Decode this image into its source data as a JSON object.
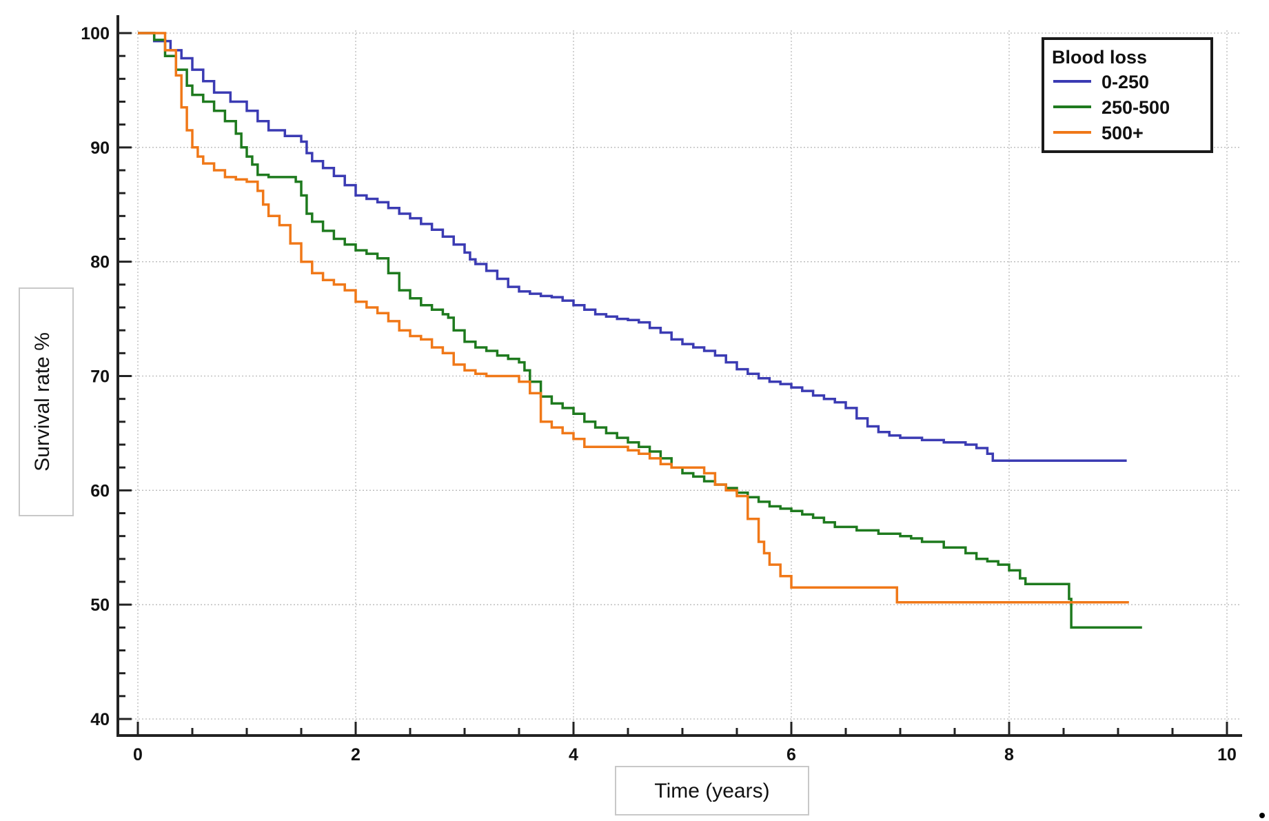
{
  "chart_data": {
    "type": "line",
    "title": "",
    "xlabel": "Time (years)",
    "ylabel": "Survival rate %",
    "xlim": [
      0,
      10
    ],
    "ylim": [
      40,
      100
    ],
    "x_ticks": [
      "0",
      "2",
      "4",
      "6",
      "8",
      "10"
    ],
    "y_ticks": [
      "40",
      "50",
      "60",
      "70",
      "80",
      "90",
      "100"
    ],
    "grid": true,
    "legend": {
      "title": "Blood loss",
      "position": "top-right"
    },
    "series": [
      {
        "name": "0-250",
        "color": "#3b3bb3",
        "x": [
          0,
          0.15,
          0.3,
          0.4,
          0.5,
          0.6,
          0.7,
          0.85,
          1.0,
          1.1,
          1.2,
          1.35,
          1.5,
          1.55,
          1.6,
          1.7,
          1.8,
          1.9,
          2.0,
          2.1,
          2.2,
          2.3,
          2.4,
          2.5,
          2.6,
          2.7,
          2.8,
          2.9,
          3.0,
          3.05,
          3.1,
          3.2,
          3.3,
          3.4,
          3.5,
          3.6,
          3.7,
          3.8,
          3.9,
          4.0,
          4.1,
          4.2,
          4.3,
          4.4,
          4.5,
          4.6,
          4.7,
          4.8,
          4.9,
          5.0,
          5.1,
          5.2,
          5.3,
          5.4,
          5.5,
          5.6,
          5.7,
          5.8,
          5.9,
          6.0,
          6.1,
          6.2,
          6.3,
          6.4,
          6.5,
          6.6,
          6.7,
          6.8,
          6.9,
          7.0,
          7.2,
          7.4,
          7.6,
          7.7,
          7.8,
          7.85,
          8.0,
          9.08
        ],
        "y": [
          100,
          99.3,
          98.5,
          97.8,
          96.8,
          95.8,
          94.8,
          94.0,
          93.2,
          92.3,
          91.5,
          91.0,
          90.5,
          89.5,
          88.8,
          88.2,
          87.5,
          86.7,
          85.8,
          85.5,
          85.2,
          84.7,
          84.2,
          83.8,
          83.3,
          82.8,
          82.2,
          81.5,
          80.8,
          80.2,
          79.8,
          79.2,
          78.5,
          77.8,
          77.4,
          77.2,
          77.0,
          76.9,
          76.6,
          76.2,
          75.8,
          75.4,
          75.2,
          75.0,
          74.9,
          74.7,
          74.2,
          73.8,
          73.2,
          72.8,
          72.5,
          72.2,
          71.8,
          71.2,
          70.6,
          70.2,
          69.8,
          69.5,
          69.3,
          69.0,
          68.7,
          68.3,
          68.0,
          67.7,
          67.2,
          66.3,
          65.6,
          65.1,
          64.8,
          64.6,
          64.4,
          64.2,
          64.0,
          63.7,
          63.2,
          62.6,
          62.6,
          62.6
        ]
      },
      {
        "name": "250-500",
        "color": "#1e7a1e",
        "x": [
          0,
          0.15,
          0.25,
          0.35,
          0.45,
          0.5,
          0.6,
          0.7,
          0.8,
          0.9,
          0.95,
          1.0,
          1.05,
          1.1,
          1.2,
          1.3,
          1.45,
          1.5,
          1.55,
          1.6,
          1.7,
          1.8,
          1.9,
          2.0,
          2.1,
          2.2,
          2.3,
          2.4,
          2.5,
          2.6,
          2.7,
          2.8,
          2.85,
          2.9,
          3.0,
          3.1,
          3.2,
          3.3,
          3.4,
          3.5,
          3.55,
          3.6,
          3.7,
          3.8,
          3.9,
          4.0,
          4.1,
          4.2,
          4.3,
          4.4,
          4.5,
          4.6,
          4.7,
          4.8,
          4.9,
          5.0,
          5.1,
          5.2,
          5.3,
          5.4,
          5.5,
          5.6,
          5.7,
          5.8,
          5.9,
          6.0,
          6.1,
          6.2,
          6.3,
          6.4,
          6.6,
          6.8,
          7.0,
          7.1,
          7.2,
          7.4,
          7.6,
          7.7,
          7.8,
          7.9,
          8.0,
          8.1,
          8.15,
          8.55,
          8.57,
          9.22
        ],
        "y": [
          100,
          99.4,
          98.0,
          96.8,
          95.4,
          94.6,
          94.0,
          93.2,
          92.3,
          91.2,
          90.0,
          89.2,
          88.5,
          87.6,
          87.4,
          87.4,
          87.0,
          85.8,
          84.2,
          83.5,
          82.7,
          82.0,
          81.5,
          81.0,
          80.7,
          80.3,
          79.0,
          77.5,
          76.8,
          76.2,
          75.8,
          75.4,
          75.1,
          74.0,
          73.0,
          72.5,
          72.2,
          71.8,
          71.5,
          71.2,
          70.5,
          69.5,
          68.2,
          67.6,
          67.2,
          66.7,
          66.0,
          65.5,
          65.0,
          64.6,
          64.2,
          63.8,
          63.4,
          62.8,
          62.0,
          61.5,
          61.2,
          60.8,
          60.5,
          60.2,
          59.8,
          59.4,
          59.0,
          58.6,
          58.4,
          58.2,
          57.9,
          57.6,
          57.2,
          56.8,
          56.5,
          56.2,
          56.0,
          55.8,
          55.5,
          55.0,
          54.5,
          54.0,
          53.8,
          53.5,
          53.0,
          52.3,
          51.8,
          50.5,
          48.0,
          48.0
        ]
      },
      {
        "name": "500+",
        "color": "#f07818",
        "x": [
          0,
          0.25,
          0.35,
          0.4,
          0.45,
          0.5,
          0.55,
          0.6,
          0.7,
          0.8,
          0.9,
          1.0,
          1.1,
          1.15,
          1.2,
          1.3,
          1.4,
          1.5,
          1.6,
          1.7,
          1.8,
          1.9,
          2.0,
          2.1,
          2.2,
          2.3,
          2.4,
          2.5,
          2.6,
          2.7,
          2.8,
          2.9,
          3.0,
          3.1,
          3.2,
          3.3,
          3.4,
          3.5,
          3.6,
          3.7,
          3.8,
          3.9,
          4.0,
          4.1,
          4.2,
          4.3,
          4.4,
          4.5,
          4.6,
          4.7,
          4.8,
          4.9,
          5.0,
          5.1,
          5.2,
          5.3,
          5.4,
          5.5,
          5.6,
          5.7,
          5.75,
          5.8,
          5.9,
          6.0,
          6.5,
          6.96,
          6.97,
          8.0,
          9.1
        ],
        "y": [
          100,
          98.5,
          96.3,
          93.5,
          91.5,
          90.0,
          89.2,
          88.6,
          88.0,
          87.4,
          87.2,
          87.0,
          86.2,
          85.0,
          84.0,
          83.2,
          81.6,
          80.0,
          79.0,
          78.4,
          78.0,
          77.5,
          76.5,
          76.0,
          75.5,
          74.8,
          74.0,
          73.5,
          73.2,
          72.5,
          72.0,
          71.0,
          70.5,
          70.2,
          70.0,
          70.0,
          70.0,
          69.5,
          68.5,
          66.0,
          65.5,
          65.0,
          64.5,
          63.8,
          63.8,
          63.8,
          63.8,
          63.5,
          63.2,
          62.8,
          62.3,
          62.0,
          62.0,
          62.0,
          61.5,
          60.5,
          60.0,
          59.5,
          57.5,
          55.5,
          54.5,
          53.5,
          52.5,
          51.5,
          51.5,
          51.5,
          50.2,
          50.2,
          50.2
        ]
      }
    ]
  }
}
